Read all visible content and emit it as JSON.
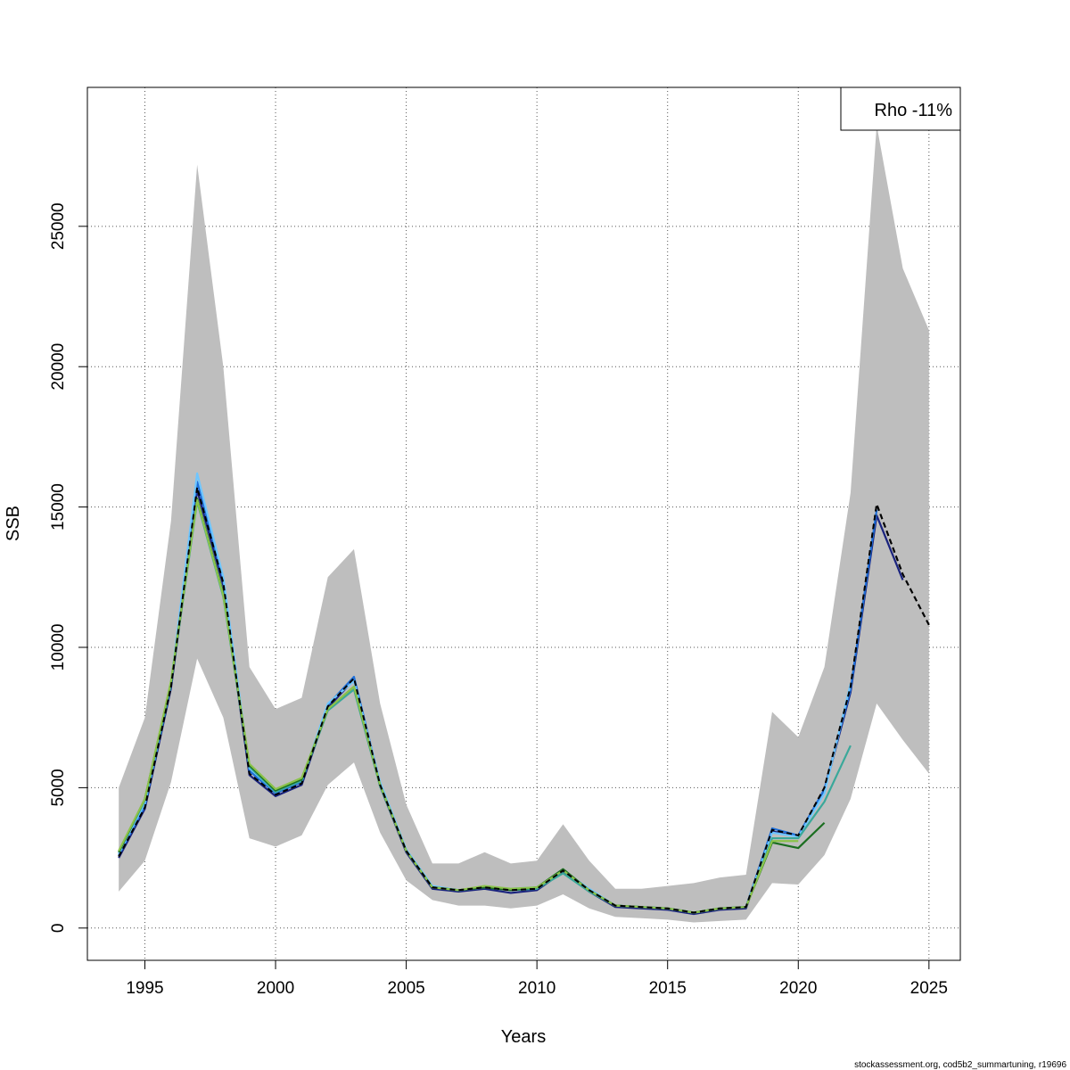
{
  "chart_data": {
    "type": "line",
    "title": "",
    "xlabel": "Years",
    "ylabel": "SSB",
    "xlim": [
      1992.8,
      2026.2
    ],
    "ylim": [
      -1150,
      29950
    ],
    "x_ticks": [
      1995,
      2000,
      2005,
      2010,
      2015,
      2020,
      2025
    ],
    "y_ticks": [
      0,
      5000,
      10000,
      15000,
      20000,
      25000
    ],
    "grid": true,
    "legend": {
      "position": "top-right",
      "text": "Rho -11%"
    },
    "confidence_band": {
      "x": [
        1994,
        1995,
        1996,
        1997,
        1998,
        1999,
        2000,
        2001,
        2002,
        2003,
        2004,
        2005,
        2006,
        2007,
        2008,
        2009,
        2010,
        2011,
        2012,
        2013,
        2014,
        2015,
        2016,
        2017,
        2018,
        2019,
        2020,
        2021,
        2022,
        2023,
        2024,
        2025
      ],
      "upper": [
        5000,
        7500,
        14500,
        27200,
        20000,
        9300,
        7800,
        8200,
        12500,
        13500,
        8000,
        4400,
        2300,
        2300,
        2700,
        2300,
        2400,
        3700,
        2400,
        1400,
        1400,
        1500,
        1600,
        1800,
        1900,
        7700,
        6800,
        9300,
        15500,
        28600,
        23500,
        21300
      ],
      "lower": [
        1300,
        2400,
        5200,
        9600,
        7500,
        3200,
        2900,
        3300,
        5100,
        5900,
        3400,
        1700,
        1000,
        800,
        800,
        700,
        800,
        1200,
        700,
        400,
        350,
        300,
        200,
        250,
        300,
        1600,
        1550,
        2600,
        4600,
        8000,
        6700,
        5500
      ],
      "color": "#bebebe"
    },
    "series": [
      {
        "color": "#000000",
        "dashed": true,
        "x": [
          1994,
          1995,
          1996,
          1997,
          1998,
          1999,
          2000,
          2001,
          2002,
          2003,
          2004,
          2005,
          2006,
          2007,
          2008,
          2009,
          2010,
          2011,
          2012,
          2013,
          2014,
          2015,
          2016,
          2017,
          2018,
          2019,
          2020,
          2021,
          2022,
          2023,
          2024,
          2025
        ],
        "y": [
          2550,
          4300,
          8600,
          15700,
          12300,
          5500,
          4750,
          5150,
          7900,
          8900,
          5100,
          2750,
          1450,
          1350,
          1450,
          1350,
          1400,
          2050,
          1350,
          800,
          750,
          700,
          550,
          700,
          750,
          3500,
          3300,
          5000,
          8600,
          15100,
          12600,
          10800
        ]
      },
      {
        "color": "#1a237e",
        "x": [
          1994,
          1995,
          1996,
          1997,
          1998,
          1999,
          2000,
          2001,
          2002,
          2003,
          2004,
          2005,
          2006,
          2007,
          2008,
          2009,
          2010,
          2011,
          2012,
          2013,
          2014,
          2015,
          2016,
          2017,
          2018,
          2019,
          2020,
          2021,
          2022,
          2023,
          2024
        ],
        "y": [
          2500,
          4250,
          8550,
          15600,
          12200,
          5450,
          4700,
          5100,
          7850,
          8850,
          5050,
          2700,
          1400,
          1300,
          1400,
          1250,
          1350,
          2000,
          1300,
          750,
          700,
          650,
          500,
          650,
          700,
          3450,
          3250,
          4900,
          8400,
          14700,
          12400
        ]
      },
      {
        "color": "#1e6fd9",
        "x": [
          1994,
          1995,
          1996,
          1997,
          1998,
          1999,
          2000,
          2001,
          2002,
          2003,
          2004,
          2005,
          2006,
          2007,
          2008,
          2009,
          2010,
          2011,
          2012,
          2013,
          2014,
          2015,
          2016,
          2017,
          2018,
          2019,
          2020,
          2021,
          2022,
          2023
        ],
        "y": [
          2600,
          4350,
          8650,
          15900,
          12400,
          5600,
          4800,
          5200,
          7950,
          8950,
          5150,
          2750,
          1450,
          1350,
          1450,
          1350,
          1400,
          2050,
          1350,
          800,
          750,
          700,
          550,
          700,
          750,
          3550,
          3300,
          4950,
          8500,
          14900
        ]
      },
      {
        "color": "#6ec6ff",
        "x": [
          1994,
          1995,
          1996,
          1997,
          1998,
          1999,
          2000,
          2001,
          2002,
          2003,
          2004,
          2005,
          2006,
          2007,
          2008,
          2009,
          2010,
          2011,
          2012,
          2013,
          2014,
          2015,
          2016,
          2017,
          2018,
          2019,
          2020,
          2021,
          2022
        ],
        "y": [
          2650,
          4450,
          8750,
          16200,
          12500,
          5700,
          4850,
          5250,
          8000,
          8800,
          5200,
          2800,
          1500,
          1350,
          1450,
          1400,
          1450,
          2050,
          1400,
          800,
          750,
          700,
          550,
          700,
          750,
          3400,
          3250,
          4800,
          8700
        ]
      },
      {
        "color": "#3aa89a",
        "x": [
          1994,
          1995,
          1996,
          1997,
          1998,
          1999,
          2000,
          2001,
          2002,
          2003,
          2004,
          2005,
          2006,
          2007,
          2008,
          2009,
          2010,
          2011,
          2012,
          2013,
          2014,
          2015,
          2016,
          2017,
          2018,
          2019,
          2020,
          2021,
          2022
        ],
        "y": [
          2700,
          4550,
          8700,
          15200,
          11800,
          5750,
          4850,
          5250,
          7750,
          8500,
          5050,
          2750,
          1450,
          1350,
          1450,
          1350,
          1400,
          1950,
          1300,
          800,
          750,
          700,
          550,
          700,
          750,
          3200,
          3200,
          4500,
          6500
        ]
      },
      {
        "color": "#1b6e20",
        "x": [
          1994,
          1995,
          1996,
          1997,
          1998,
          1999,
          2000,
          2001,
          2002,
          2003,
          2004,
          2005,
          2006,
          2007,
          2008,
          2009,
          2010,
          2011,
          2012,
          2013,
          2014,
          2015,
          2016,
          2017,
          2018,
          2019,
          2020,
          2021
        ],
        "y": [
          2700,
          4600,
          8750,
          15300,
          11900,
          5800,
          4900,
          5300,
          7800,
          8600,
          5100,
          2750,
          1450,
          1350,
          1450,
          1350,
          1450,
          2100,
          1350,
          800,
          750,
          700,
          550,
          700,
          750,
          3050,
          2850,
          3750
        ]
      },
      {
        "color": "#8bc34a",
        "x": [
          1994,
          1995,
          1996,
          1997,
          1998,
          1999,
          2000,
          2001,
          2002,
          2003,
          2004,
          2005,
          2006,
          2007,
          2008,
          2009,
          2010,
          2011,
          2012,
          2013,
          2014,
          2015,
          2016,
          2017,
          2018,
          2019,
          2020
        ],
        "y": [
          2750,
          4600,
          8800,
          15250,
          11850,
          5850,
          4950,
          5350,
          7800,
          8600,
          5100,
          2750,
          1450,
          1350,
          1500,
          1400,
          1450,
          2050,
          1350,
          800,
          750,
          700,
          550,
          700,
          750,
          3100,
          3100
        ]
      }
    ]
  },
  "footer": "stockassessment.org, cod5b2_summartuning, r19696"
}
